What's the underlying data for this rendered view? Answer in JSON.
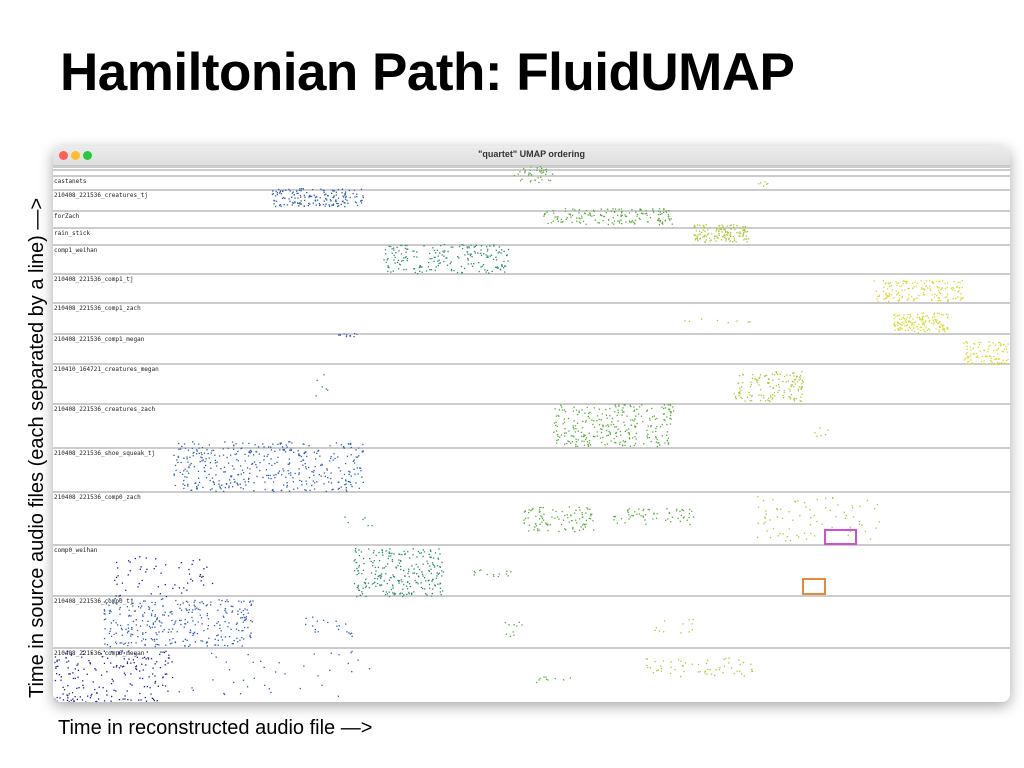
{
  "slide": {
    "title": "Hamiltonian Path: FluidUMAP",
    "y_caption": "Time in source audio files (each separated by a line)  —>",
    "x_caption": "Time in reconstructed audio file —>"
  },
  "window": {
    "title": "\"quartet\" UMAP ordering",
    "buttons": [
      "close",
      "minimize",
      "maximize"
    ]
  },
  "tracks": [
    {
      "label": "castanets"
    },
    {
      "label": "210408_221536_creatures_tj"
    },
    {
      "label": "forZach"
    },
    {
      "label": "rain_stick"
    },
    {
      "label": "comp1_weihan"
    },
    {
      "label": "210408_221536_comp1_tj"
    },
    {
      "label": "210408_221536_comp1_zach"
    },
    {
      "label": "210408_221536_comp1_megan"
    },
    {
      "label": "210410_164721_creatures_megan"
    },
    {
      "label": "210408_221536_creatures_zach"
    },
    {
      "label": "210408_221536_shoe_squeak_tj"
    },
    {
      "label": "210408_221536_comp0_zach"
    },
    {
      "label": "comp0_weihan"
    },
    {
      "label": "210408_221536_comp0_tj"
    },
    {
      "label": "210408_221536_comp0_megan"
    }
  ],
  "highlights": [
    {
      "name": "magenta-selection",
      "color": "#d04fd8"
    },
    {
      "name": "orange-selection",
      "color": "#e8883a"
    }
  ],
  "palette": {
    "blue_dark": "#1a1a9a",
    "blue": "#2f5db0",
    "teal": "#2a8a70",
    "green": "#5aa83a",
    "lime": "#a8c830",
    "yellow": "#d8d828"
  }
}
